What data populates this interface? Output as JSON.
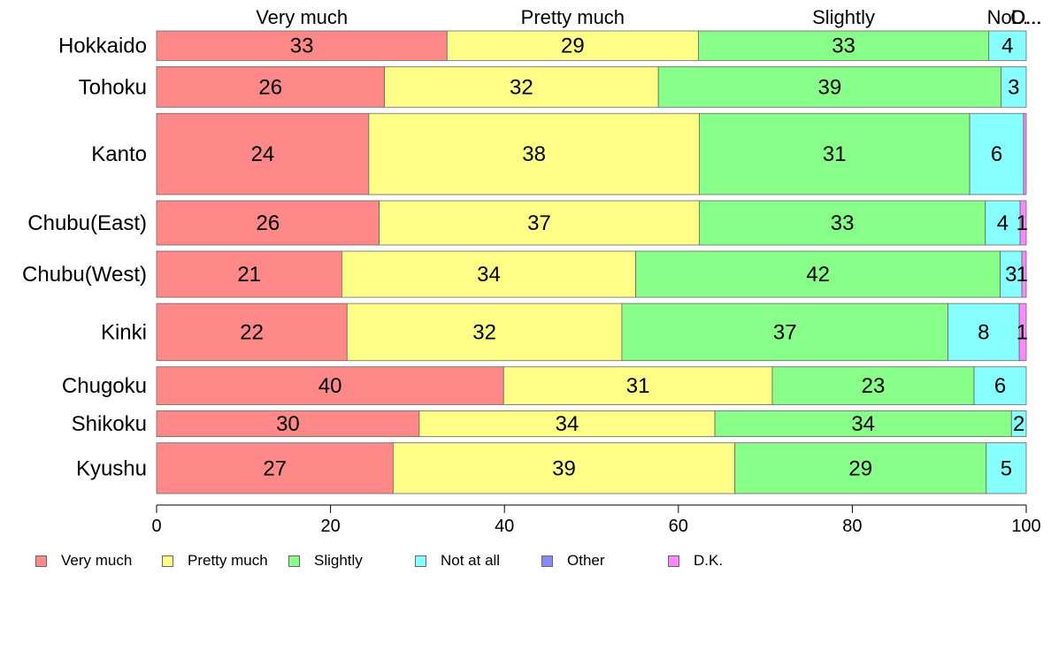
{
  "chart_data": {
    "type": "bar",
    "orientation": "horizontal",
    "stacked": true,
    "proportional_bar_heights": true,
    "categories": [
      "Hokkaido",
      "Tohoku",
      "Kanto",
      "Chubu(East)",
      "Chubu(West)",
      "Kinki",
      "Chugoku",
      "Shikoku",
      "Kyushu"
    ],
    "series": [
      {
        "name": "Very much",
        "color": "#FF8888",
        "values": [
          33.4,
          26.2,
          24.4,
          25.6,
          21.3,
          21.9,
          39.9,
          30.2,
          27.2
        ]
      },
      {
        "name": "Pretty much",
        "color": "#FFFF88",
        "values": [
          28.9,
          31.5,
          38.0,
          36.8,
          33.8,
          31.6,
          30.9,
          34.0,
          39.3
        ]
      },
      {
        "name": "Slightly",
        "color": "#88FF88",
        "values": [
          33.4,
          39.4,
          31.1,
          32.9,
          41.9,
          37.5,
          23.2,
          34.1,
          28.9
        ]
      },
      {
        "name": "Not at all",
        "color": "#88FFFF",
        "values": [
          4.3,
          2.9,
          6.2,
          4.0,
          2.5,
          8.2,
          6.0,
          1.7,
          4.6
        ]
      },
      {
        "name": "Other",
        "color": "#8888FF",
        "values": [
          0.0,
          0.0,
          0.0,
          0.0,
          0.0,
          0.0,
          0.0,
          0.0,
          0.0
        ]
      },
      {
        "name": "D.K.",
        "color": "#FF88FF",
        "values": [
          0.0,
          0.0,
          0.3,
          0.7,
          0.5,
          0.8,
          0.0,
          0.0,
          0.0
        ]
      }
    ],
    "data_labels": [
      [
        "33",
        "29",
        "33",
        "4",
        "",
        ""
      ],
      [
        "26",
        "32",
        "39",
        "3",
        "",
        ""
      ],
      [
        "24",
        "38",
        "31",
        "6",
        "",
        ""
      ],
      [
        "26",
        "37",
        "33",
        "4",
        "",
        "1"
      ],
      [
        "21",
        "34",
        "42",
        "3",
        "",
        "1"
      ],
      [
        "22",
        "32",
        "37",
        "8",
        "",
        "1"
      ],
      [
        "40",
        "31",
        "23",
        "6",
        "",
        ""
      ],
      [
        "30",
        "34",
        "34",
        "2",
        "",
        ""
      ],
      [
        "27",
        "39",
        "29",
        "5",
        "",
        ""
      ]
    ],
    "bar_weights": [
      32,
      44,
      88,
      48,
      50,
      62,
      41,
      28,
      55
    ],
    "top_series_labels": [
      "Very much",
      "Pretty much",
      "Slightly",
      "No...",
      "O...",
      "D..."
    ],
    "xlim": [
      0,
      100
    ],
    "xticks": [
      0,
      20,
      40,
      60,
      80,
      100
    ],
    "legend_position": "bottom-left",
    "grid": false
  }
}
